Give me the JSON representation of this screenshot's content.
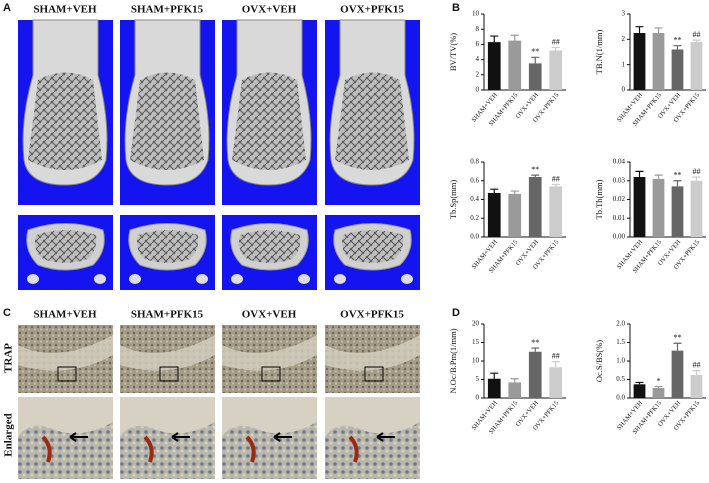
{
  "panels": [
    "A",
    "B",
    "C",
    "D"
  ],
  "panel_a": {
    "columns": [
      "SHAM+VEH",
      "SHAM+PFK15",
      "OVX+VEH",
      "OVX+PFK15"
    ]
  },
  "panel_c": {
    "columns": [
      "SHAM+VEH",
      "SHAM+PFK15",
      "OVX+VEH",
      "OVX+PFK15"
    ],
    "rows": [
      "TRAP",
      "Enlarged"
    ]
  },
  "chart_data": [
    {
      "type": "bar",
      "ylabel": "BV/TV(%)",
      "categories": [
        "SHAM+VEH",
        "SHAM+PFK15",
        "OVX+VEH",
        "OVX+PFK15"
      ],
      "values": [
        6.3,
        6.5,
        3.5,
        5.2
      ],
      "errors": [
        0.8,
        0.7,
        0.8,
        0.4
      ],
      "significance": [
        null,
        null,
        "**",
        "##"
      ],
      "colors": [
        "#111111",
        "#9a9a9a",
        "#666666",
        "#cccccc"
      ],
      "ylim": [
        0,
        10
      ],
      "yticks": [
        0,
        2,
        4,
        6,
        8,
        10
      ]
    },
    {
      "type": "bar",
      "ylabel": "TB.N(1/mm)",
      "categories": [
        "SHAM+VEH",
        "SHAM+PFK15",
        "OVX+VEH",
        "OVX+PFK15"
      ],
      "values": [
        2.25,
        2.25,
        1.6,
        1.9
      ],
      "errors": [
        0.25,
        0.2,
        0.15,
        0.07
      ],
      "significance": [
        null,
        null,
        "**",
        "##"
      ],
      "colors": [
        "#111111",
        "#9a9a9a",
        "#666666",
        "#cccccc"
      ],
      "ylim": [
        0,
        3
      ],
      "yticks": [
        0,
        1,
        2,
        3
      ]
    },
    {
      "type": "bar",
      "ylabel": "Tb.Sp(mm)",
      "categories": [
        "SHAM+VEH",
        "SHAM+PFK15",
        "OVX+VEH",
        "OVX+PFK15"
      ],
      "values": [
        0.47,
        0.46,
        0.64,
        0.54
      ],
      "errors": [
        0.04,
        0.03,
        0.02,
        0.02
      ],
      "significance": [
        null,
        null,
        "**",
        "##"
      ],
      "colors": [
        "#111111",
        "#9a9a9a",
        "#666666",
        "#cccccc"
      ],
      "ylim": [
        0,
        0.8
      ],
      "yticks": [
        {
          "value": 0,
          "label": "0.0"
        },
        0.2,
        0.4,
        0.6,
        0.8
      ]
    },
    {
      "type": "bar",
      "ylabel": "Tb.Th(mm)",
      "categories": [
        "SHAM+VEH",
        "SHAM+PFK15",
        "OVX+VEH",
        "OVX+PFK15"
      ],
      "values": [
        0.032,
        0.031,
        0.027,
        0.03
      ],
      "errors": [
        0.003,
        0.002,
        0.003,
        0.002
      ],
      "significance": [
        null,
        null,
        "**",
        "##"
      ],
      "colors": [
        "#111111",
        "#9a9a9a",
        "#666666",
        "#cccccc"
      ],
      "ylim": [
        0,
        0.04
      ],
      "yticks": [
        {
          "value": 0,
          "label": "0.00"
        },
        0.01,
        0.02,
        0.03,
        0.04
      ]
    },
    {
      "type": "bar",
      "ylabel": "N.Oc/B.Pm(1/mm)",
      "categories": [
        "SHAM+VEH",
        "SHAM+PFK15",
        "OVX+VEH",
        "OVX+PFK15"
      ],
      "values": [
        5.2,
        4.2,
        12.5,
        8.3
      ],
      "errors": [
        1.5,
        1.0,
        1.0,
        1.5
      ],
      "significance": [
        null,
        null,
        "**",
        "##"
      ],
      "colors": [
        "#111111",
        "#9a9a9a",
        "#666666",
        "#cccccc"
      ],
      "ylim": [
        0,
        20
      ],
      "yticks": [
        0,
        5,
        10,
        15,
        20
      ]
    },
    {
      "type": "bar",
      "ylabel": "Oc.S/BS(%)",
      "categories": [
        "SHAM+VEH",
        "SHAM+PFK15",
        "OVX+VEH",
        "OVX+PFK15"
      ],
      "values": [
        0.37,
        0.27,
        1.28,
        0.62
      ],
      "errors": [
        0.05,
        0.04,
        0.2,
        0.12
      ],
      "significance": [
        null,
        "*",
        "**",
        "##"
      ],
      "colors": [
        "#111111",
        "#9a9a9a",
        "#666666",
        "#cccccc"
      ],
      "ylim": [
        0,
        2
      ],
      "yticks": [
        {
          "value": 0,
          "label": "0.0"
        },
        0.5,
        {
          "value": 1,
          "label": "1.0"
        },
        1.5,
        {
          "value": 2,
          "label": "2.0"
        }
      ]
    }
  ]
}
